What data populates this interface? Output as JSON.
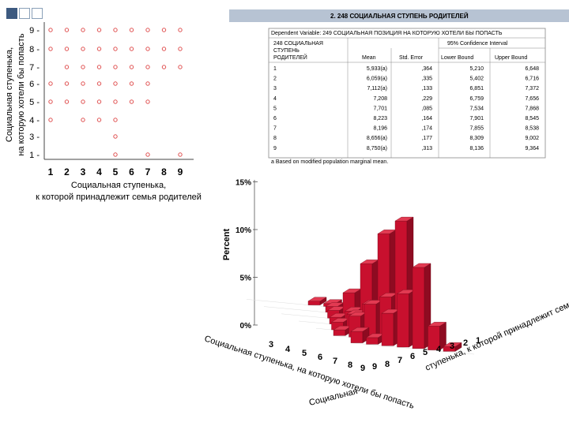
{
  "slide": {
    "accent": "#3d5a80",
    "strip_color": "#b7c3d3"
  },
  "scatter": {
    "ylabel_line1": "Социальная ступенька,",
    "ylabel_line2": "на которую хотели бы попасть",
    "xlabel_line1": "Социальная   ступенька,",
    "xlabel_line2": "к которой принадлежит семья родителей",
    "x_ticks": [
      "1",
      "2",
      "3",
      "4",
      "5",
      "6",
      "7",
      "8",
      "9"
    ],
    "y_ticks": [
      "9",
      "8",
      "7",
      "6",
      "5",
      "4",
      "3",
      "1"
    ],
    "rows": [
      {
        "y": "9",
        "xs": [
          1,
          2,
          3,
          4,
          5,
          6,
          7,
          8,
          9
        ]
      },
      {
        "y": "8",
        "xs": [
          1,
          2,
          3,
          4,
          5,
          6,
          7,
          8,
          9
        ]
      },
      {
        "y": "7",
        "xs": [
          2,
          3,
          4,
          5,
          6,
          7,
          8,
          9
        ]
      },
      {
        "y": "6",
        "xs": [
          1,
          2,
          3,
          4,
          5,
          6,
          7
        ]
      },
      {
        "y": "5",
        "xs": [
          1,
          2,
          3,
          4,
          5,
          6,
          7
        ]
      },
      {
        "y": "4",
        "xs": [
          1,
          3,
          4,
          5
        ]
      },
      {
        "y": "3",
        "xs": [
          5
        ]
      },
      {
        "y": "1",
        "xs": [
          5,
          7,
          9
        ]
      }
    ],
    "marker_color": "#e05252"
  },
  "table": {
    "heading": "2. 248  СОЦИАЛЬНАЯ СТУПЕНЬ РОДИТЕЛЕЙ",
    "dependent": "Dependent Variable: 249  СОЦИАЛЬНАЯ ПОЗИЦИЯ НА КОТОРУЮ ХОТЕЛИ БЫ ПОПАСТЬ",
    "rowvar_line1": "248  СОЦИАЛЬНАЯ",
    "rowvar_line2": "СТУПЕНЬ",
    "rowvar_line3": "РОДИТЕЛЕЙ",
    "col_mean": "Mean",
    "col_se": "Std. Error",
    "col_ci": "95% Confidence Interval",
    "col_lower": "Lower Bound",
    "col_upper": "Upper Bound",
    "footnote": "a  Based on modified population marginal mean.",
    "rows": [
      {
        "level": "1",
        "mean": "5,933(a)",
        "se": ",364",
        "lower": "5,210",
        "upper": "6,648"
      },
      {
        "level": "2",
        "mean": "6,059(a)",
        "se": ",335",
        "lower": "5,402",
        "upper": "6,716"
      },
      {
        "level": "3",
        "mean": "7,112(a)",
        "se": ",133",
        "lower": "6,851",
        "upper": "7,372"
      },
      {
        "level": "4",
        "mean": "7,208",
        "se": ",229",
        "lower": "6,759",
        "upper": "7,656"
      },
      {
        "level": "5",
        "mean": "7,701",
        "se": ",085",
        "lower": "7,534",
        "upper": "7,868"
      },
      {
        "level": "6",
        "mean": "8,223",
        "se": ",164",
        "lower": "7,901",
        "upper": "8,545"
      },
      {
        "level": "7",
        "mean": "8,196",
        "se": ",174",
        "lower": "7,855",
        "upper": "8,538"
      },
      {
        "level": "8",
        "mean": "8,656(a)",
        "se": ",177",
        "lower": "8,309",
        "upper": "9,002"
      },
      {
        "level": "9",
        "mean": "8,750(a)",
        "se": ",313",
        "lower": "8,136",
        "upper": "9,364"
      }
    ]
  },
  "chart_data": {
    "type": "bar3d",
    "zlabel": "Percent",
    "z_ticks": [
      "15%",
      "10%",
      "5%",
      "0%"
    ],
    "zlim": [
      0,
      15
    ],
    "x_axis_label": "Социальная ступенька, на которую хотели бы попасть",
    "x_ticks": [
      "3",
      "4",
      "5",
      "6",
      "7",
      "8",
      "9"
    ],
    "y_axis_label": "ступенька,  к которой принадлежит семья родителей",
    "y_ticks": [
      "9",
      "8",
      "7",
      "6",
      "5",
      "4",
      "3",
      "2",
      "1"
    ],
    "x_tick_suffix": "Социальная",
    "bars": [
      {
        "x": "9",
        "y": "9",
        "v": 1.2
      },
      {
        "x": "9",
        "y": "8",
        "v": 0.7
      },
      {
        "x": "9",
        "y": "7",
        "v": 3.4
      },
      {
        "x": "9",
        "y": "6",
        "v": 5.6
      },
      {
        "x": "9",
        "y": "5",
        "v": 8.5
      },
      {
        "x": "9",
        "y": "4",
        "v": 2.5
      },
      {
        "x": "9",
        "y": "3",
        "v": 0.5
      },
      {
        "x": "8",
        "y": "9",
        "v": 0.6
      },
      {
        "x": "8",
        "y": "8",
        "v": 2.2
      },
      {
        "x": "8",
        "y": "7",
        "v": 3.6
      },
      {
        "x": "8",
        "y": "6",
        "v": 4.5
      },
      {
        "x": "8",
        "y": "5",
        "v": 12.6
      },
      {
        "x": "8",
        "y": "4",
        "v": 2.4
      },
      {
        "x": "8",
        "y": "3",
        "v": 0.8
      },
      {
        "x": "7",
        "y": "8",
        "v": 0.8
      },
      {
        "x": "7",
        "y": "7",
        "v": 1.8
      },
      {
        "x": "7",
        "y": "6",
        "v": 3.0
      },
      {
        "x": "7",
        "y": "5",
        "v": 10.5
      },
      {
        "x": "7",
        "y": "4",
        "v": 2.3
      },
      {
        "x": "7",
        "y": "3",
        "v": 0.6
      },
      {
        "x": "6",
        "y": "7",
        "v": 0.7
      },
      {
        "x": "6",
        "y": "6",
        "v": 1.5
      },
      {
        "x": "6",
        "y": "5",
        "v": 6.6
      },
      {
        "x": "6",
        "y": "4",
        "v": 1.6
      },
      {
        "x": "5",
        "y": "6",
        "v": 0.8
      },
      {
        "x": "5",
        "y": "5",
        "v": 2.8
      },
      {
        "x": "5",
        "y": "4",
        "v": 0.8
      },
      {
        "x": "4",
        "y": "5",
        "v": 0.6
      },
      {
        "x": "4",
        "y": "4",
        "v": 0.4
      },
      {
        "x": "3",
        "y": "5",
        "v": 0.4
      },
      {
        "x": "3",
        "y": "4",
        "v": 0.3
      }
    ],
    "bar_color": "#c8102e"
  }
}
